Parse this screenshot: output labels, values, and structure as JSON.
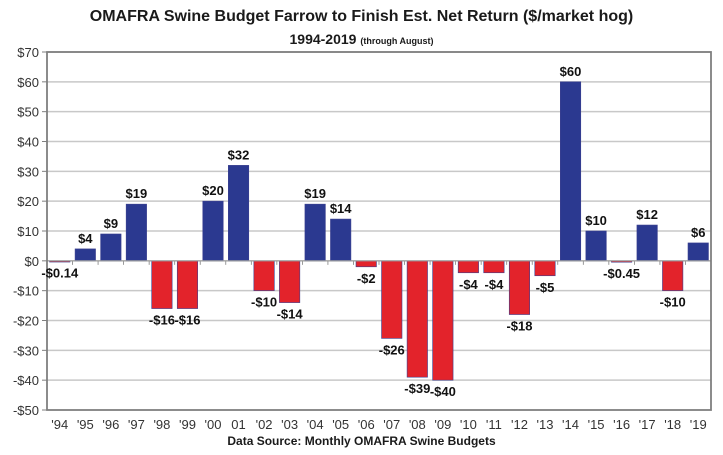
{
  "chart_data": {
    "type": "bar",
    "title": "OMAFRA Swine Budget Farrow to Finish Est. Net Return ($/market hog)",
    "subtitle": "1994-2019",
    "subtitle_note": "(through August)",
    "source": "Data Source: Monthly OMAFRA Swine Budgets",
    "xlabel": "",
    "ylabel": "",
    "ylim": [
      -50,
      70
    ],
    "ytick_step": 10,
    "ytick_labels": [
      "$70",
      "$60",
      "$50",
      "$40",
      "$30",
      "$20",
      "$10",
      "$0",
      "-$10",
      "-$20",
      "-$30",
      "-$40",
      "-$50"
    ],
    "grid": true,
    "legend": "none",
    "categories": [
      "'94",
      "'95",
      "'96",
      "'97",
      "'98",
      "'99",
      "'00",
      "01",
      "'02",
      "'03",
      "'04",
      "'05",
      "'06",
      "'07",
      "'08",
      "'09",
      "'10",
      "'11",
      "'12",
      "'13",
      "'14",
      "'15",
      "'16",
      "'17",
      "'18",
      "'19"
    ],
    "values": [
      -0.14,
      4,
      9,
      19,
      -16,
      -16,
      20,
      32,
      -10,
      -14,
      19,
      14,
      -2,
      -26,
      -39,
      -40,
      -4,
      -4,
      -18,
      -5,
      60,
      10,
      -0.45,
      12,
      -10,
      6
    ],
    "data_labels": [
      "-$0.14",
      "$4",
      "$9",
      "$19",
      "-$16",
      "-$16",
      "$20",
      "$32",
      "-$10",
      "-$14",
      "$19",
      "$14",
      "-$2",
      "-$26",
      "-$39",
      "-$40",
      "-$4",
      "-$4",
      "-$18",
      "-$5",
      "$60",
      "$10",
      "-$0.45",
      "$12",
      "-$10",
      "$6"
    ],
    "colors": {
      "positive": "#2b3990",
      "negative": "#e3232b",
      "grid": "#c8c8c8",
      "axis": "#7f7f7f"
    }
  }
}
